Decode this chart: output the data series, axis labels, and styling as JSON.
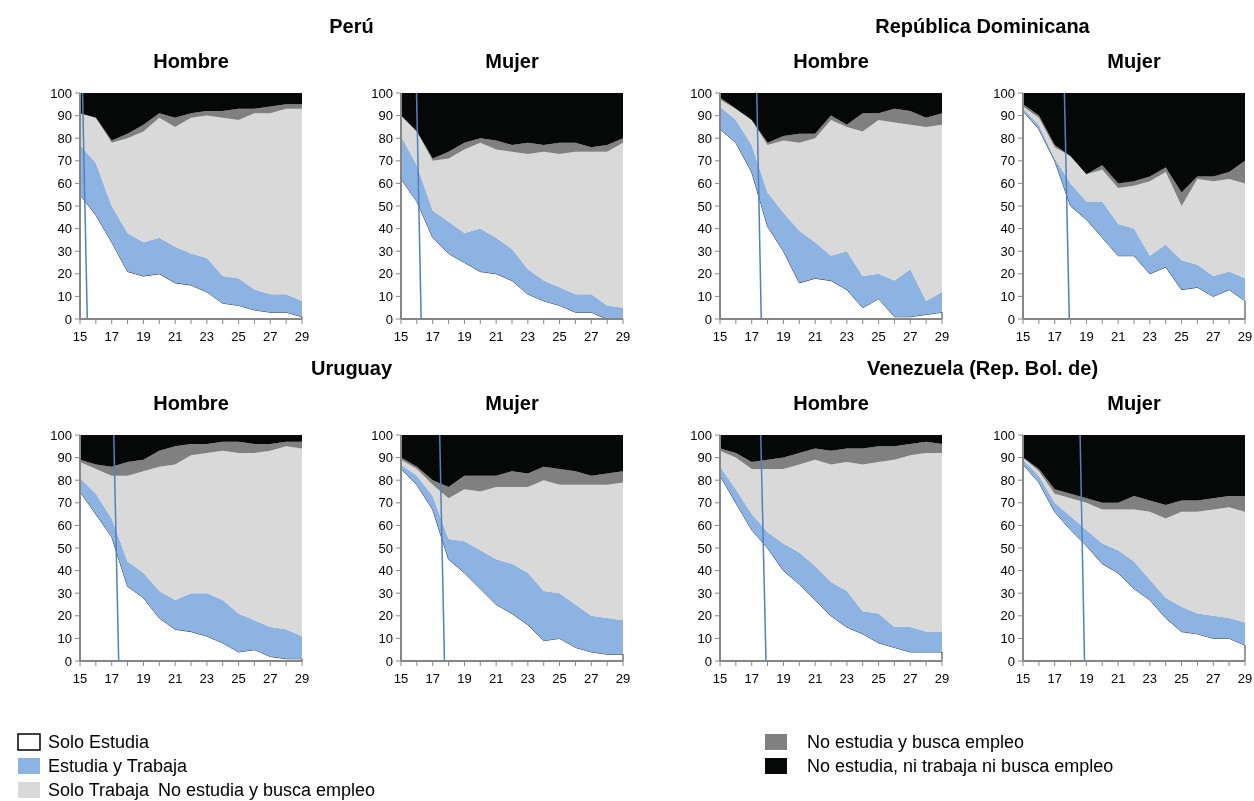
{
  "chart_data": [
    {
      "type": "other",
      "title": "Perú"
    },
    {
      "type": "area",
      "subtitle": "Hombre",
      "stacked": true,
      "legend": "bottom",
      "annotations": [
        "No estudia y busca empleo"
      ],
      "x": [
        15,
        16,
        17,
        18,
        19,
        20,
        21,
        22,
        23,
        24,
        25,
        26,
        27,
        28,
        29
      ],
      "xlim": [
        15,
        29
      ],
      "ylim": [
        0,
        100
      ],
      "yticks": [
        0,
        10,
        20,
        30,
        40,
        50,
        60,
        70,
        80,
        90,
        100
      ],
      "xticks": [
        15,
        {
          "value": 16,
          "label": null
        },
        17,
        {
          "value": 18,
          "label": null
        },
        19,
        {
          "value": 20,
          "label": null
        },
        21,
        {
          "value": 22,
          "label": null
        },
        23,
        {
          "value": 24,
          "label": null
        },
        25,
        {
          "value": 26,
          "label": null
        },
        27,
        {
          "value": 28,
          "label": null
        },
        29
      ],
      "series": [
        {
          "name": "Solo Estudia",
          "color": "#ffffff",
          "values": [
            55,
            46,
            34,
            21,
            19,
            20,
            16,
            15,
            12,
            7,
            6,
            4,
            3,
            3,
            1
          ]
        },
        {
          "name": "Estudia y Trabaja",
          "color": "#8db3e2",
          "values": [
            22,
            23,
            16,
            17,
            15,
            16,
            16,
            14,
            15,
            12,
            12,
            9,
            8,
            8,
            7
          ]
        },
        {
          "name": "Solo Trabaja",
          "color": "#d9d9d9",
          "values": [
            14,
            20,
            28,
            42,
            49,
            53,
            53,
            60,
            63,
            70,
            70,
            78,
            80,
            82,
            85
          ]
        },
        {
          "name": "No estudia y busca empleo",
          "color": "#808080",
          "values": [
            0,
            0,
            1,
            2,
            3,
            2,
            4,
            2,
            2,
            3,
            5,
            2,
            3,
            2,
            2
          ]
        },
        {
          "name": "No estudia, ni trabaja ni busca empleo",
          "color": "#060808",
          "values": [
            9,
            11,
            21,
            18,
            14,
            9,
            11,
            9,
            8,
            8,
            7,
            7,
            6,
            5,
            5
          ]
        },
        {
          "type": "line",
          "color": "#4f81bd",
          "x": [
            15.16,
            15.46
          ],
          "values": [
            100,
            0
          ]
        }
      ]
    },
    {
      "type": "area",
      "subtitle": "Mujer",
      "stacked": true,
      "x": [
        15,
        16,
        17,
        18,
        19,
        20,
        21,
        22,
        23,
        24,
        25,
        26,
        27,
        28,
        29
      ],
      "xlim": [
        15,
        29
      ],
      "ylim": [
        0,
        100
      ],
      "yticks": [
        0,
        10,
        20,
        30,
        40,
        50,
        60,
        70,
        80,
        90,
        100
      ],
      "xticks": [
        15,
        {
          "value": 16,
          "label": null
        },
        17,
        {
          "value": 18,
          "label": null
        },
        19,
        {
          "value": 20,
          "label": null
        },
        21,
        {
          "value": 22,
          "label": null
        },
        23,
        {
          "value": 24,
          "label": null
        },
        25,
        {
          "value": 26,
          "label": null
        },
        27,
        {
          "value": 28,
          "label": null
        },
        29
      ],
      "series": [
        {
          "color": "#ffffff",
          "values": [
            62,
            52,
            36,
            29,
            25,
            21,
            20,
            17,
            11,
            8,
            6,
            3,
            3,
            0,
            0
          ]
        },
        {
          "color": "#8db3e2",
          "values": [
            19,
            16,
            12,
            14,
            13,
            19,
            16,
            14,
            11,
            9,
            8,
            8,
            8,
            6,
            5
          ]
        },
        {
          "color": "#d9d9d9",
          "values": [
            9,
            15,
            22,
            28,
            37,
            38,
            39,
            43,
            51,
            57,
            59,
            63,
            63,
            68,
            73
          ]
        },
        {
          "color": "#808080",
          "values": [
            0,
            0,
            1,
            3,
            3,
            2,
            4,
            3,
            5,
            3,
            5,
            4,
            2,
            3,
            2
          ]
        },
        {
          "color": "#060808",
          "values": [
            10,
            17,
            29,
            26,
            22,
            20,
            21,
            23,
            22,
            23,
            22,
            22,
            24,
            23,
            20
          ]
        },
        {
          "type": "line",
          "color": "#4f81bd",
          "x": [
            15.98,
            16.27
          ],
          "values": [
            100,
            0
          ]
        }
      ]
    },
    {
      "type": "other",
      "title": "República Dominicana"
    },
    {
      "type": "area",
      "subtitle": "Hombre",
      "stacked": true,
      "x": [
        15,
        16,
        17,
        18,
        19,
        20,
        21,
        22,
        23,
        24,
        25,
        26,
        27,
        28,
        29
      ],
      "xlim": [
        15,
        29
      ],
      "ylim": [
        0,
        100
      ],
      "yticks": [
        0,
        10,
        20,
        30,
        40,
        50,
        60,
        70,
        80,
        90,
        100
      ],
      "xticks": [
        15,
        {
          "value": 16,
          "label": null
        },
        17,
        {
          "value": 18,
          "label": null
        },
        19,
        {
          "value": 20,
          "label": null
        },
        21,
        {
          "value": 22,
          "label": null
        },
        23,
        {
          "value": 24,
          "label": null
        },
        25,
        {
          "value": 26,
          "label": null
        },
        27,
        {
          "value": 28,
          "label": null
        },
        29
      ],
      "series": [
        {
          "color": "#ffffff",
          "values": [
            84,
            78,
            65,
            41,
            30,
            16,
            18,
            17,
            13,
            5,
            9,
            1,
            1,
            2,
            3
          ]
        },
        {
          "color": "#8db3e2",
          "values": [
            10,
            10,
            12,
            15,
            17,
            23,
            16,
            11,
            17,
            14,
            11,
            16,
            21,
            6,
            9
          ]
        },
        {
          "color": "#d9d9d9",
          "values": [
            3,
            5,
            11,
            21,
            32,
            39,
            46,
            60,
            55,
            64,
            68,
            70,
            64,
            77,
            74
          ]
        },
        {
          "color": "#808080",
          "values": [
            1,
            0,
            0,
            1,
            2,
            4,
            2,
            2,
            1,
            8,
            3,
            6,
            6,
            4,
            5
          ]
        },
        {
          "color": "#060808",
          "values": [
            2,
            7,
            12,
            22,
            19,
            18,
            18,
            10,
            14,
            9,
            9,
            7,
            8,
            11,
            9
          ]
        },
        {
          "type": "line",
          "color": "#4f81bd",
          "x": [
            17.32,
            17.6
          ],
          "values": [
            100,
            0
          ]
        }
      ]
    },
    {
      "type": "area",
      "subtitle": "Mujer",
      "stacked": true,
      "x": [
        15,
        16,
        17,
        18,
        19,
        20,
        21,
        22,
        23,
        24,
        25,
        26,
        27,
        28,
        29
      ],
      "xlim": [
        15,
        29
      ],
      "ylim": [
        0,
        100
      ],
      "yticks": [
        0,
        10,
        20,
        30,
        40,
        50,
        60,
        70,
        80,
        90,
        100
      ],
      "xticks": [
        15,
        {
          "value": 16,
          "label": null
        },
        17,
        {
          "value": 18,
          "label": null
        },
        19,
        {
          "value": 20,
          "label": null
        },
        21,
        {
          "value": 22,
          "label": null
        },
        23,
        {
          "value": 24,
          "label": null
        },
        25,
        {
          "value": 26,
          "label": null
        },
        27,
        {
          "value": 28,
          "label": null
        },
        29
      ],
      "series": [
        {
          "color": "#ffffff",
          "values": [
            92,
            84,
            70,
            50,
            44,
            36,
            28,
            28,
            20,
            23,
            13,
            14,
            10,
            13,
            8
          ]
        },
        {
          "color": "#8db3e2",
          "values": [
            1,
            2,
            1,
            10,
            8,
            16,
            14,
            12,
            8,
            10,
            13,
            10,
            9,
            8,
            10
          ]
        },
        {
          "color": "#d9d9d9",
          "values": [
            1,
            3,
            5,
            12,
            12,
            14,
            16,
            19,
            33,
            32,
            24,
            38,
            42,
            41,
            42
          ]
        },
        {
          "color": "#808080",
          "values": [
            1,
            1,
            1,
            0,
            0,
            2,
            2,
            2,
            2,
            2,
            6,
            1,
            2,
            3,
            10
          ]
        },
        {
          "color": "#060808",
          "values": [
            5,
            10,
            23,
            28,
            36,
            32,
            40,
            39,
            37,
            33,
            44,
            37,
            37,
            35,
            30
          ]
        },
        {
          "type": "line",
          "color": "#4f81bd",
          "x": [
            17.61,
            17.92
          ],
          "values": [
            100,
            0
          ]
        }
      ]
    },
    {
      "type": "other",
      "title": "Uruguay"
    },
    {
      "type": "area",
      "subtitle": "Hombre",
      "stacked": true,
      "x": [
        15,
        16,
        17,
        18,
        19,
        20,
        21,
        22,
        23,
        24,
        25,
        26,
        27,
        28,
        29
      ],
      "xlim": [
        15,
        29
      ],
      "ylim": [
        0,
        100
      ],
      "yticks": [
        0,
        10,
        20,
        30,
        40,
        50,
        60,
        70,
        80,
        90,
        100
      ],
      "xticks": [
        15,
        {
          "value": 16,
          "label": null
        },
        17,
        {
          "value": 18,
          "label": null
        },
        19,
        {
          "value": 20,
          "label": null
        },
        21,
        {
          "value": 22,
          "label": null
        },
        23,
        {
          "value": 24,
          "label": null
        },
        25,
        {
          "value": 26,
          "label": null
        },
        27,
        {
          "value": 28,
          "label": null
        },
        29
      ],
      "series": [
        {
          "color": "#ffffff",
          "values": [
            75,
            65,
            55,
            33,
            28,
            19,
            14,
            13,
            11,
            8,
            4,
            5,
            2,
            1,
            1
          ]
        },
        {
          "color": "#8db3e2",
          "values": [
            6,
            9,
            8,
            11,
            11,
            12,
            13,
            17,
            19,
            19,
            17,
            13,
            13,
            13,
            10
          ]
        },
        {
          "color": "#d9d9d9",
          "values": [
            7,
            11,
            19,
            38,
            45,
            55,
            60,
            61,
            62,
            66,
            71,
            74,
            78,
            81,
            83
          ]
        },
        {
          "color": "#808080",
          "values": [
            1,
            2,
            4,
            6,
            5,
            7,
            8,
            5,
            4,
            4,
            5,
            4,
            3,
            2,
            3
          ]
        },
        {
          "color": "#060808",
          "values": [
            11,
            13,
            14,
            12,
            11,
            7,
            5,
            4,
            4,
            3,
            3,
            4,
            4,
            3,
            3
          ]
        },
        {
          "type": "line",
          "color": "#4f81bd",
          "x": [
            17.13,
            17.44
          ],
          "values": [
            100,
            0
          ]
        }
      ]
    },
    {
      "type": "area",
      "subtitle": "Mujer",
      "stacked": true,
      "x": [
        15,
        16,
        17,
        18,
        19,
        20,
        21,
        22,
        23,
        24,
        25,
        26,
        27,
        28,
        29
      ],
      "xlim": [
        15,
        29
      ],
      "ylim": [
        0,
        100
      ],
      "yticks": [
        0,
        10,
        20,
        30,
        40,
        50,
        60,
        70,
        80,
        90,
        100
      ],
      "xticks": [
        15,
        {
          "value": 16,
          "label": null
        },
        17,
        {
          "value": 18,
          "label": null
        },
        19,
        {
          "value": 20,
          "label": null
        },
        21,
        {
          "value": 22,
          "label": null
        },
        23,
        {
          "value": 24,
          "label": null
        },
        25,
        {
          "value": 26,
          "label": null
        },
        27,
        {
          "value": 28,
          "label": null
        },
        29
      ],
      "series": [
        {
          "color": "#ffffff",
          "values": [
            85,
            78,
            67,
            45,
            39,
            32,
            25,
            21,
            16,
            9,
            10,
            6,
            4,
            3,
            3
          ]
        },
        {
          "color": "#8db3e2",
          "values": [
            2,
            4,
            6,
            9,
            14,
            17,
            20,
            22,
            23,
            22,
            20,
            19,
            16,
            16,
            15
          ]
        },
        {
          "color": "#d9d9d9",
          "values": [
            2,
            3,
            5,
            18,
            23,
            26,
            32,
            34,
            38,
            49,
            48,
            53,
            58,
            59,
            61
          ]
        },
        {
          "color": "#808080",
          "values": [
            1,
            1,
            2,
            5,
            6,
            7,
            5,
            7,
            6,
            6,
            7,
            6,
            4,
            5,
            5
          ]
        },
        {
          "color": "#060808",
          "values": [
            10,
            14,
            20,
            23,
            18,
            18,
            18,
            16,
            17,
            14,
            15,
            16,
            18,
            17,
            16
          ]
        },
        {
          "type": "line",
          "color": "#4f81bd",
          "x": [
            17.44,
            17.74
          ],
          "values": [
            100,
            0
          ]
        }
      ]
    },
    {
      "type": "other",
      "title": "Venezuela (Rep. Bol. de)"
    },
    {
      "type": "area",
      "subtitle": "Hombre",
      "stacked": true,
      "x": [
        15,
        16,
        17,
        18,
        19,
        20,
        21,
        22,
        23,
        24,
        25,
        26,
        27,
        28,
        29
      ],
      "xlim": [
        15,
        29
      ],
      "ylim": [
        0,
        100
      ],
      "yticks": [
        0,
        10,
        20,
        30,
        40,
        50,
        60,
        70,
        80,
        90,
        100
      ],
      "xticks": [
        15,
        {
          "value": 16,
          "label": null
        },
        17,
        {
          "value": 18,
          "label": null
        },
        19,
        {
          "value": 20,
          "label": null
        },
        21,
        {
          "value": 22,
          "label": null
        },
        23,
        {
          "value": 24,
          "label": null
        },
        25,
        {
          "value": 26,
          "label": null
        },
        27,
        {
          "value": 28,
          "label": null
        },
        29
      ],
      "series": [
        {
          "color": "#ffffff",
          "values": [
            82,
            70,
            58,
            50,
            40,
            34,
            27,
            20,
            15,
            12,
            8,
            6,
            4,
            4,
            4
          ]
        },
        {
          "color": "#8db3e2",
          "values": [
            4,
            6,
            7,
            7,
            12,
            14,
            15,
            15,
            16,
            10,
            13,
            9,
            11,
            9,
            9
          ]
        },
        {
          "color": "#d9d9d9",
          "values": [
            7,
            14,
            20,
            28,
            33,
            39,
            47,
            52,
            57,
            65,
            67,
            74,
            76,
            79,
            79
          ]
        },
        {
          "color": "#808080",
          "values": [
            1,
            2,
            3,
            4,
            5,
            5,
            5,
            6,
            6,
            7,
            7,
            6,
            5,
            5,
            4
          ]
        },
        {
          "color": "#060808",
          "values": [
            6,
            8,
            12,
            11,
            10,
            8,
            6,
            7,
            6,
            6,
            5,
            5,
            4,
            3,
            4
          ]
        },
        {
          "type": "line",
          "color": "#4f81bd",
          "x": [
            17.57,
            17.9
          ],
          "values": [
            100,
            0
          ]
        }
      ]
    },
    {
      "type": "area",
      "subtitle": "Mujer",
      "stacked": true,
      "x": [
        15,
        16,
        17,
        18,
        19,
        20,
        21,
        22,
        23,
        24,
        25,
        26,
        27,
        28,
        29
      ],
      "xlim": [
        15,
        29
      ],
      "ylim": [
        0,
        100
      ],
      "yticks": [
        0,
        10,
        20,
        30,
        40,
        50,
        60,
        70,
        80,
        90,
        100
      ],
      "xticks": [
        15,
        {
          "value": 16,
          "label": null
        },
        17,
        {
          "value": 18,
          "label": null
        },
        19,
        {
          "value": 20,
          "label": null
        },
        21,
        {
          "value": 22,
          "label": null
        },
        23,
        {
          "value": 24,
          "label": null
        },
        25,
        {
          "value": 26,
          "label": null
        },
        27,
        {
          "value": 28,
          "label": null
        },
        29
      ],
      "series": [
        {
          "color": "#ffffff",
          "values": [
            87,
            79,
            66,
            58,
            51,
            43,
            39,
            32,
            27,
            19,
            13,
            12,
            10,
            10,
            7
          ]
        },
        {
          "color": "#8db3e2",
          "values": [
            2,
            3,
            4,
            6,
            7,
            9,
            10,
            12,
            9,
            9,
            11,
            9,
            10,
            9,
            10
          ]
        },
        {
          "color": "#d9d9d9",
          "values": [
            1,
            2,
            4,
            8,
            12,
            15,
            18,
            23,
            30,
            35,
            42,
            45,
            47,
            49,
            49
          ]
        },
        {
          "color": "#808080",
          "values": [
            0,
            1,
            2,
            2,
            2,
            3,
            3,
            6,
            5,
            6,
            5,
            5,
            5,
            5,
            7
          ]
        },
        {
          "color": "#060808",
          "values": [
            10,
            15,
            24,
            26,
            28,
            30,
            30,
            27,
            29,
            31,
            29,
            29,
            28,
            27,
            27
          ]
        },
        {
          "type": "line",
          "color": "#4f81bd",
          "x": [
            18.6,
            18.88
          ],
          "values": [
            100,
            0
          ]
        }
      ]
    }
  ]
}
